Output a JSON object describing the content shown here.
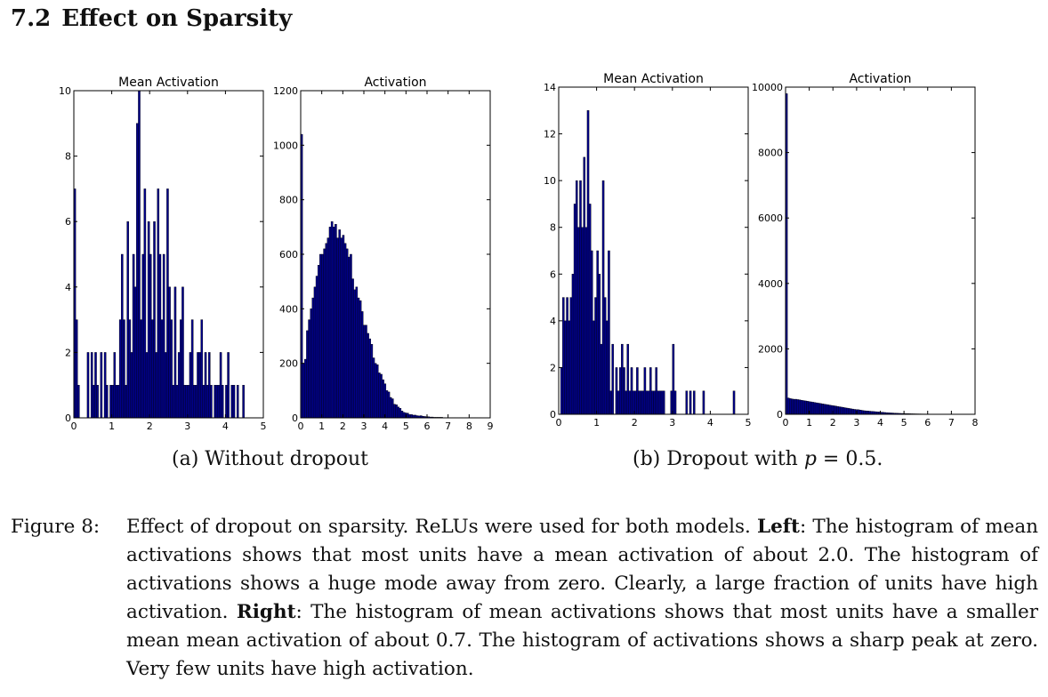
{
  "section": {
    "number": "7.2",
    "title": "Effect on Sparsity"
  },
  "chart_data": [
    {
      "type": "bar",
      "panel": "a",
      "title": "Mean Activation",
      "xlim": [
        0,
        5
      ],
      "ylim": [
        0,
        10
      ],
      "xticks": [
        "0",
        "1",
        "2",
        "3",
        "4",
        "5"
      ],
      "yticks": [
        "0",
        "2",
        "4",
        "6",
        "8",
        "10"
      ],
      "bin_width": 0.05,
      "x": [
        0.0,
        0.05,
        0.1,
        0.35,
        0.45,
        0.5,
        0.55,
        0.6,
        0.7,
        0.8,
        0.85,
        0.95,
        1.0,
        1.05,
        1.1,
        1.15,
        1.2,
        1.25,
        1.3,
        1.35,
        1.4,
        1.45,
        1.5,
        1.55,
        1.6,
        1.65,
        1.7,
        1.75,
        1.8,
        1.85,
        1.9,
        1.95,
        2.0,
        2.05,
        2.1,
        2.15,
        2.2,
        2.25,
        2.3,
        2.35,
        2.4,
        2.45,
        2.5,
        2.55,
        2.6,
        2.65,
        2.7,
        2.75,
        2.8,
        2.85,
        2.9,
        2.95,
        3.0,
        3.05,
        3.1,
        3.15,
        3.2,
        3.25,
        3.3,
        3.35,
        3.4,
        3.45,
        3.5,
        3.55,
        3.6,
        3.7,
        3.75,
        3.8,
        3.85,
        3.9,
        4.0,
        4.05,
        4.15,
        4.2,
        4.3,
        4.45
      ],
      "values": [
        7,
        3,
        1,
        2,
        2,
        1,
        2,
        1,
        2,
        2,
        1,
        1,
        1,
        2,
        1,
        1,
        3,
        5,
        3,
        1,
        6,
        3,
        2,
        5,
        4,
        9,
        10,
        3,
        5,
        7,
        2,
        6,
        5,
        3,
        6,
        2,
        7,
        5,
        3,
        5,
        2,
        7,
        4,
        3,
        1,
        4,
        1,
        2,
        3,
        4,
        1,
        1,
        1,
        2,
        3,
        1,
        1,
        2,
        2,
        3,
        1,
        2,
        1,
        2,
        1,
        1,
        1,
        1,
        2,
        1,
        1,
        2,
        1,
        1,
        1,
        1
      ]
    },
    {
      "type": "bar",
      "panel": "a",
      "title": "Activation",
      "xlim": [
        0,
        9
      ],
      "ylim": [
        0,
        1200
      ],
      "xticks": [
        "0",
        "1",
        "2",
        "3",
        "4",
        "5",
        "6",
        "7",
        "8",
        "9"
      ],
      "yticks": [
        "0",
        "200",
        "400",
        "600",
        "800",
        "1000",
        "1200"
      ],
      "bin_width": 0.09,
      "x": [
        0.0,
        0.09,
        0.18,
        0.27,
        0.36,
        0.45,
        0.54,
        0.63,
        0.72,
        0.81,
        0.9,
        0.99,
        1.08,
        1.17,
        1.26,
        1.35,
        1.44,
        1.53,
        1.62,
        1.71,
        1.8,
        1.89,
        1.98,
        2.07,
        2.16,
        2.25,
        2.34,
        2.43,
        2.52,
        2.61,
        2.7,
        2.79,
        2.88,
        2.97,
        3.06,
        3.15,
        3.24,
        3.33,
        3.42,
        3.51,
        3.6,
        3.69,
        3.78,
        3.87,
        3.96,
        4.05,
        4.14,
        4.23,
        4.32,
        4.41,
        4.5,
        4.59,
        4.68,
        4.77,
        4.86,
        4.95,
        5.04,
        5.13,
        5.22,
        5.31,
        5.4,
        5.49,
        5.58,
        5.67,
        5.76,
        5.85,
        5.94,
        6.03,
        6.12,
        6.21,
        6.3,
        6.39,
        6.48,
        6.57,
        6.66,
        6.75,
        6.84,
        6.93,
        7.02,
        7.11,
        7.2,
        7.29,
        7.38,
        7.47,
        7.56,
        7.65,
        7.74,
        7.83,
        7.92,
        8.01,
        8.1,
        8.19,
        8.28,
        8.37,
        8.46
      ],
      "values": [
        1040,
        200,
        215,
        320,
        360,
        400,
        440,
        480,
        520,
        560,
        600,
        600,
        620,
        640,
        660,
        700,
        720,
        700,
        710,
        660,
        690,
        660,
        670,
        640,
        620,
        590,
        600,
        510,
        470,
        480,
        440,
        430,
        390,
        340,
        340,
        310,
        290,
        270,
        220,
        200,
        195,
        165,
        160,
        140,
        125,
        100,
        95,
        75,
        70,
        50,
        48,
        40,
        35,
        25,
        20,
        18,
        17,
        12,
        12,
        10,
        10,
        8,
        7,
        8,
        6,
        5,
        4,
        4,
        3,
        3,
        2,
        2,
        2,
        2,
        2,
        1,
        1,
        1,
        1,
        1,
        1,
        1,
        1,
        1,
        1,
        1,
        1,
        1,
        1,
        1,
        1,
        1,
        1,
        1,
        1
      ]
    },
    {
      "type": "bar",
      "panel": "b",
      "title": "Mean Activation",
      "xlim": [
        0,
        5
      ],
      "ylim": [
        0,
        14
      ],
      "xticks": [
        "0",
        "1",
        "2",
        "3",
        "4",
        "5"
      ],
      "yticks": [
        "0",
        "2",
        "4",
        "6",
        "8",
        "10",
        "12",
        "14"
      ],
      "bin_width": 0.05,
      "x": [
        0.05,
        0.1,
        0.15,
        0.2,
        0.25,
        0.3,
        0.35,
        0.4,
        0.45,
        0.5,
        0.55,
        0.6,
        0.65,
        0.7,
        0.75,
        0.8,
        0.85,
        0.9,
        0.95,
        1.0,
        1.05,
        1.1,
        1.15,
        1.2,
        1.25,
        1.3,
        1.35,
        1.4,
        1.5,
        1.55,
        1.6,
        1.65,
        1.7,
        1.75,
        1.8,
        1.85,
        1.9,
        1.95,
        2.0,
        2.05,
        2.1,
        2.15,
        2.2,
        2.25,
        2.3,
        2.35,
        2.4,
        2.45,
        2.5,
        2.55,
        2.6,
        2.65,
        2.7,
        2.75,
        2.95,
        3.0,
        3.05,
        3.35,
        3.45,
        3.55,
        3.8,
        4.6
      ],
      "values": [
        2,
        5,
        4,
        5,
        4,
        5,
        6,
        9,
        10,
        8,
        10,
        8,
        11,
        8,
        13,
        9,
        7,
        4,
        5,
        7,
        6,
        3,
        10,
        5,
        4,
        7,
        1,
        3,
        2,
        1,
        2,
        3,
        2,
        1,
        3,
        1,
        2,
        1,
        1,
        2,
        1,
        1,
        1,
        2,
        1,
        1,
        2,
        1,
        1,
        2,
        1,
        1,
        1,
        1,
        1,
        3,
        1,
        1,
        1,
        1,
        1,
        1
      ]
    },
    {
      "type": "bar",
      "panel": "b",
      "title": "Activation",
      "xlim": [
        0,
        8
      ],
      "ylim": [
        0,
        10000
      ],
      "xticks": [
        "0",
        "1",
        "2",
        "3",
        "4",
        "5",
        "6",
        "7",
        "8"
      ],
      "yticks": [
        "0",
        "2000",
        "4000",
        "6000",
        "8000",
        "10000"
      ],
      "bin_width": 0.08,
      "x": [
        0.0,
        0.08,
        0.16,
        0.24,
        0.32,
        0.4,
        0.48,
        0.56,
        0.64,
        0.72,
        0.8,
        0.88,
        0.96,
        1.04,
        1.12,
        1.2,
        1.28,
        1.36,
        1.44,
        1.52,
        1.6,
        1.68,
        1.76,
        1.84,
        1.92,
        2.0,
        2.08,
        2.16,
        2.24,
        2.32,
        2.4,
        2.48,
        2.56,
        2.64,
        2.72,
        2.8,
        2.88,
        2.96,
        3.04,
        3.12,
        3.2,
        3.28,
        3.36,
        3.44,
        3.52,
        3.6,
        3.68,
        3.76,
        3.84,
        3.92,
        4.0,
        4.08,
        4.16,
        4.24,
        4.32,
        4.4,
        4.48,
        4.56,
        4.64,
        4.72,
        4.8,
        4.88,
        4.96,
        5.04,
        5.12,
        5.2,
        5.28,
        5.36,
        5.44,
        5.52,
        5.6,
        5.68,
        5.76,
        5.84,
        5.92,
        6.0,
        6.08,
        6.16,
        6.24,
        6.32,
        6.4,
        6.48,
        6.56,
        6.64,
        6.72,
        6.8,
        6.88,
        6.96,
        7.04,
        7.12,
        7.2,
        7.28,
        7.36,
        7.44,
        7.52,
        7.6,
        7.68,
        7.76,
        7.84
      ],
      "values": [
        9800,
        500,
        480,
        470,
        460,
        460,
        450,
        440,
        430,
        420,
        410,
        400,
        390,
        380,
        370,
        360,
        350,
        340,
        330,
        320,
        310,
        300,
        290,
        280,
        270,
        260,
        250,
        240,
        230,
        220,
        210,
        200,
        190,
        180,
        170,
        160,
        150,
        145,
        140,
        130,
        120,
        110,
        105,
        100,
        95,
        90,
        85,
        80,
        75,
        70,
        65,
        60,
        55,
        50,
        45,
        42,
        40,
        36,
        33,
        30,
        28,
        26,
        24,
        22,
        20,
        18,
        16,
        15,
        14,
        13,
        12,
        11,
        10,
        10,
        9,
        9,
        8,
        8,
        7,
        7,
        6,
        6,
        6,
        5,
        5,
        5,
        4,
        4,
        4,
        4,
        3,
        3,
        3,
        3,
        3,
        2,
        2,
        2,
        2
      ]
    }
  ],
  "subcaptions": {
    "a": "(a) Without dropout",
    "b_text": "(b) Dropout with ",
    "b_var": "p",
    "b_rest": " = 0.5."
  },
  "caption": {
    "label": "Figure 8:",
    "s1": "Effect of dropout on sparsity. ReLUs were used for both models. ",
    "left_label": "Left",
    "s2": ": The histogram of mean activations shows that most units have a mean activation of about 2.0. The histogram of activations shows a huge mode away from zero. Clearly, a large fraction of units have high activation. ",
    "right_label": "Right",
    "s3": ": The histogram of mean activations shows that most units have a smaller mean mean activation of about 0.7. The histogram of activations shows a sharp peak at zero. Very few units have high activation."
  },
  "colors": {
    "bar_fill": "#00008b",
    "bar_edge": "#000000",
    "axes": "#000000"
  }
}
